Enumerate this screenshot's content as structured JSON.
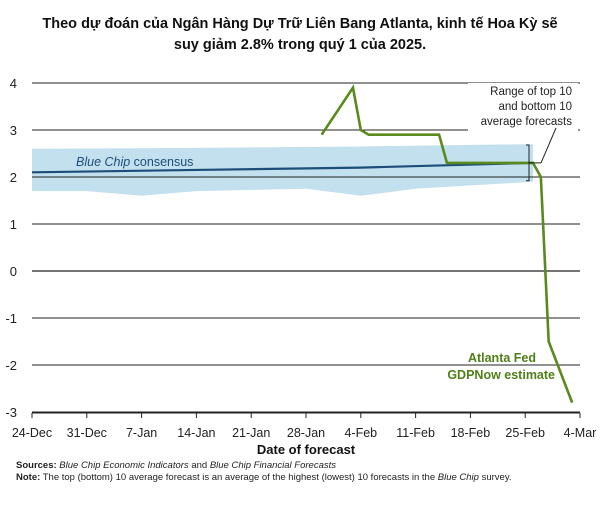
{
  "title_line1": "Theo dự đoán của Ngân Hàng Dự Trữ Liên Bang Atlanta, kinh tế Hoa Kỳ sẽ",
  "title_line2": "suy giảm 2.8% trong quý 1 của 2025.",
  "colors": {
    "band": "#b9dbec",
    "consensus_line": "#1d4e79",
    "gdpnow_line": "#5a8a1e",
    "gdpnow_label": "#4f7f17",
    "grid": "#222222"
  },
  "chart_data": {
    "type": "line",
    "xlabel": "Date of forecast",
    "ylabel": "",
    "ylim": [
      -3,
      4
    ],
    "y_ticks": [
      "4",
      "3",
      "2",
      "1",
      "0",
      "-1",
      "-2",
      "-3"
    ],
    "y_tick_values": [
      4,
      3,
      2,
      1,
      0,
      -1,
      -2,
      -3
    ],
    "x_ticks": [
      "24-Dec",
      "31-Dec",
      "7-Jan",
      "14-Jan",
      "21-Jan",
      "28-Jan",
      "4-Feb",
      "11-Feb",
      "18-Feb",
      "25-Feb",
      "4-Mar"
    ],
    "x_tick_dates": [
      "2024-12-24",
      "2024-12-31",
      "2025-01-07",
      "2025-01-14",
      "2025-01-21",
      "2025-01-28",
      "2025-02-04",
      "2025-02-11",
      "2025-02-18",
      "2025-02-25",
      "2025-03-04"
    ],
    "x_range": [
      "2024-12-24",
      "2025-03-04"
    ],
    "grid": "horizontal",
    "series": [
      {
        "name": "Blue Chip consensus",
        "kind": "line",
        "points": [
          [
            "2024-12-24",
            2.1
          ],
          [
            "2025-01-14",
            2.15
          ],
          [
            "2025-02-04",
            2.2
          ],
          [
            "2025-02-26",
            2.3
          ]
        ]
      },
      {
        "name": "Range of top 10 and bottom 10 average forecasts",
        "kind": "band",
        "upper": [
          [
            "2024-12-24",
            2.6
          ],
          [
            "2025-01-14",
            2.62
          ],
          [
            "2025-02-04",
            2.65
          ],
          [
            "2025-02-26",
            2.7
          ]
        ],
        "lower": [
          [
            "2024-12-24",
            1.7
          ],
          [
            "2024-12-31",
            1.7
          ],
          [
            "2025-01-07",
            1.6
          ],
          [
            "2025-01-14",
            1.7
          ],
          [
            "2025-01-28",
            1.75
          ],
          [
            "2025-02-04",
            1.6
          ],
          [
            "2025-02-11",
            1.75
          ],
          [
            "2025-02-26",
            1.9
          ]
        ]
      },
      {
        "name": "Atlanta Fed GDPNow estimate",
        "kind": "line",
        "points": [
          [
            "2025-01-30",
            2.9
          ],
          [
            "2025-02-03",
            3.9
          ],
          [
            "2025-02-04",
            3.0
          ],
          [
            "2025-02-05",
            2.9
          ],
          [
            "2025-02-14",
            2.9
          ],
          [
            "2025-02-15",
            2.3
          ],
          [
            "2025-02-26",
            2.3
          ],
          [
            "2025-02-27",
            2.0
          ],
          [
            "2025-02-28",
            -1.5
          ],
          [
            "2025-03-03",
            -2.8
          ]
        ]
      }
    ],
    "annotations": {
      "range_label": [
        "Range of top 10",
        "and bottom 10",
        "average forecasts"
      ],
      "consensus_label": "Blue Chip consensus",
      "consensus_label_italic": "Blue Chip",
      "consensus_label_rest": "consensus",
      "gdpnow_label": [
        "Atlanta Fed",
        "GDPNow estimate"
      ]
    }
  },
  "footer": {
    "sources_label": "Sources:",
    "sources_pub1": "Blue Chip Economic Indicators",
    "sources_and": "and",
    "sources_pub2": "Blue Chip Financial Forecasts",
    "note_label": "Note:",
    "note_text1": "The top (bottom) 10 average forecast is an average of the highest (lowest) 10 forecasts in the",
    "note_italic": "Blue Chip",
    "note_text2": "survey."
  }
}
